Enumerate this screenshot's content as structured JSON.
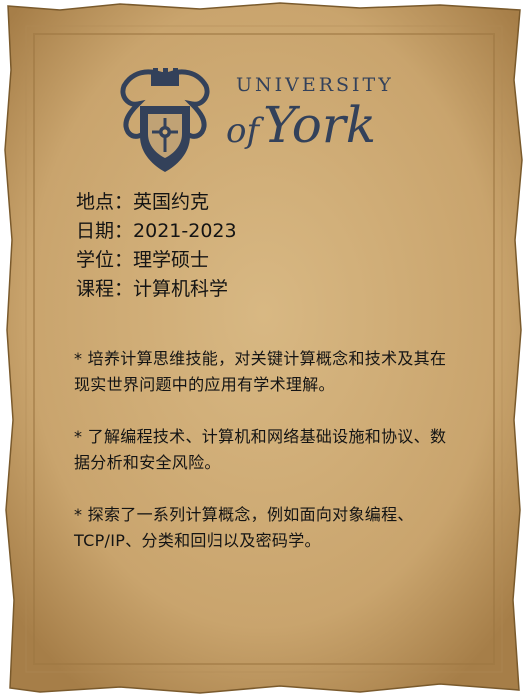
{
  "university": {
    "line1": "UNIVERSITY",
    "of": "of",
    "name": "York"
  },
  "details": [
    {
      "label": "地点",
      "sep": "：",
      "value": "英国约克"
    },
    {
      "label": "日期",
      "sep": "：",
      "value": "2021-2023"
    },
    {
      "label": "学位",
      "sep": "：",
      "value": "理学硕士"
    },
    {
      "label": "课程",
      "sep": "：",
      "value": "计算机科学"
    }
  ],
  "bullets": [
    "* 培养计算思维技能，对关键计算概念和技术及其在现实世界问题中的应用有学术理解。",
    "* 了解编程技术、计算机和网络基础设施和协议、数据分析和安全风险。",
    "* 探索了一系列计算概念，例如面向对象编程、TCP/IP、分类和回归以及密码学。"
  ],
  "colors": {
    "paper": "#cfad78",
    "paper_dark": "#a9824e",
    "border": "#8a6636",
    "logo": "#33415a",
    "text": "#141414"
  }
}
